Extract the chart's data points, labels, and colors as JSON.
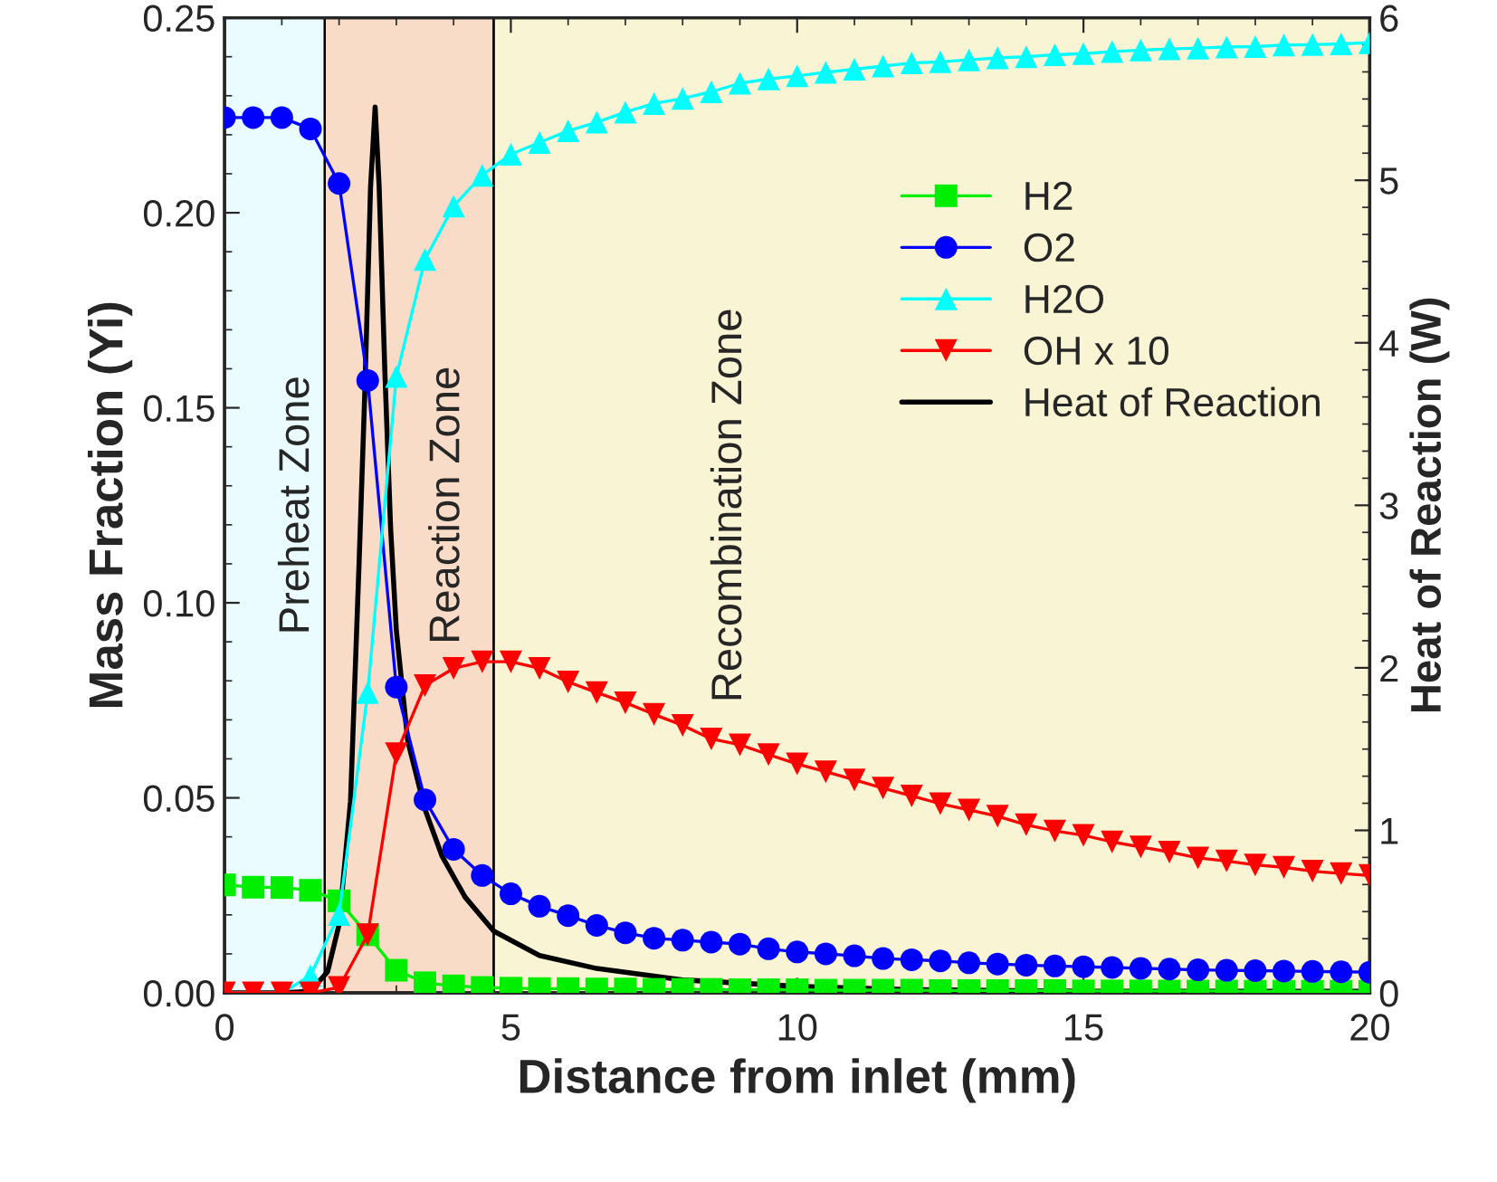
{
  "chart_data": {
    "type": "line",
    "xlabel": "Distance from inlet (mm)",
    "ylabel": "Mass Fraction (Yi)",
    "y2label": "Heat of Reaction (W)",
    "x": [
      0,
      0.5,
      1,
      1.5,
      2,
      2.5,
      3,
      3.5,
      4,
      4.5,
      5,
      5.5,
      6,
      6.5,
      7,
      7.5,
      8,
      8.5,
      9,
      9.5,
      10,
      10.5,
      11,
      11.5,
      12,
      12.5,
      13,
      13.5,
      14,
      14.5,
      15,
      15.5,
      16,
      16.5,
      17,
      17.5,
      18,
      18.5,
      19,
      19.5,
      20
    ],
    "series": [
      {
        "name": "H2",
        "color": "#00ee00",
        "marker": "square",
        "values": [
          0.0277,
          0.0271,
          0.027,
          0.0263,
          0.0236,
          0.0149,
          0.0058,
          0.0026,
          0.0018,
          0.0014,
          0.0012,
          0.0011,
          0.0011,
          0.001,
          0.001,
          0.0009,
          0.0009,
          0.0009,
          0.0008,
          0.0008,
          0.0008,
          0.0007,
          0.0007,
          0.0007,
          0.0007,
          0.0006,
          0.0006,
          0.0006,
          0.0006,
          0.0006,
          0.0005,
          0.0005,
          0.0005,
          0.0005,
          0.0005,
          0.0005,
          0.0004,
          0.0004,
          0.0004,
          0.0004,
          0.0004
        ]
      },
      {
        "name": "O2",
        "color": "#0000ff",
        "marker": "circle",
        "values": [
          0.2244,
          0.2244,
          0.2244,
          0.2215,
          0.2075,
          0.157,
          0.0784,
          0.0495,
          0.0368,
          0.0301,
          0.0254,
          0.0222,
          0.0198,
          0.0173,
          0.0154,
          0.014,
          0.0135,
          0.013,
          0.0125,
          0.0113,
          0.0105,
          0.01,
          0.0095,
          0.0088,
          0.0085,
          0.0082,
          0.0077,
          0.0074,
          0.0071,
          0.0069,
          0.0067,
          0.0065,
          0.0063,
          0.0061,
          0.0059,
          0.0058,
          0.0057,
          0.0056,
          0.0055,
          0.0054,
          0.0053
        ]
      },
      {
        "name": "H2O",
        "color": "#00ffff",
        "marker": "triangle",
        "values": [
          0,
          0,
          0,
          0.0044,
          0.0201,
          0.077,
          0.158,
          0.188,
          0.2017,
          0.2096,
          0.215,
          0.218,
          0.221,
          0.2232,
          0.2258,
          0.228,
          0.2293,
          0.231,
          0.2332,
          0.2343,
          0.2351,
          0.236,
          0.2368,
          0.2376,
          0.2384,
          0.2387,
          0.2392,
          0.2397,
          0.24,
          0.2405,
          0.2408,
          0.2413,
          0.2417,
          0.242,
          0.2422,
          0.2425,
          0.2426,
          0.243,
          0.2431,
          0.2433,
          0.2436
        ]
      },
      {
        "name": "OH x 10",
        "color": "#ff0000",
        "marker": "triangle_down",
        "values": [
          0,
          0,
          0,
          0,
          0.0014,
          0.0149,
          0.0613,
          0.0788,
          0.0832,
          0.0849,
          0.0849,
          0.0832,
          0.0797,
          0.077,
          0.0744,
          0.0714,
          0.0686,
          0.0651,
          0.0636,
          0.0611,
          0.0587,
          0.0567,
          0.0546,
          0.0525,
          0.0505,
          0.0485,
          0.0469,
          0.0453,
          0.0431,
          0.0415,
          0.0404,
          0.0387,
          0.0374,
          0.0361,
          0.0346,
          0.0338,
          0.0328,
          0.0322,
          0.0312,
          0.0306,
          0.0301
        ]
      },
      {
        "name": "Heat of Reaction",
        "color": "#000000",
        "marker": "none",
        "axis": "y2",
        "x": [
          0,
          1,
          1.5,
          1.8,
          2,
          2.2,
          2.35,
          2.45,
          2.55,
          2.63,
          2.7,
          2.8,
          2.9,
          3,
          3.2,
          3.5,
          3.8,
          4.2,
          4.7,
          5.5,
          6.5,
          8,
          10,
          12,
          15,
          20
        ],
        "values": [
          0,
          0,
          0.01,
          0.13,
          0.42,
          1.18,
          2.65,
          3.7,
          4.96,
          5.45,
          4.96,
          3.82,
          2.86,
          2.23,
          1.55,
          1.13,
          0.84,
          0.59,
          0.38,
          0.23,
          0.15,
          0.08,
          0.04,
          0.02,
          0.01,
          0.01
        ]
      }
    ],
    "bands": [
      {
        "axis": "x",
        "from": 0,
        "to": 1.75,
        "label": "Preheat Zone",
        "color": "#eafcff"
      },
      {
        "axis": "x",
        "from": 1.75,
        "to": 4.7,
        "label": "Reaction Zone",
        "color": "#f9dcc8"
      },
      {
        "axis": "x",
        "from": 4.7,
        "to": 20,
        "label": "Recombination Zone",
        "color": "#f9f5d4"
      }
    ],
    "xlim": [
      0,
      20
    ],
    "xticks": [
      0,
      5,
      10,
      15,
      20
    ],
    "ylim": [
      0,
      0.25
    ],
    "yticks": [
      {
        "value": 0,
        "label": "0.00"
      },
      {
        "value": 0.05,
        "label": "0.05"
      },
      {
        "value": 0.1,
        "label": "0.10"
      },
      {
        "value": 0.15,
        "label": "0.15"
      },
      {
        "value": 0.2,
        "label": "0.20"
      },
      {
        "value": 0.25,
        "label": "0.25"
      }
    ],
    "y2lim": [
      0,
      6
    ],
    "y2ticks": [
      0,
      1,
      2,
      3,
      4,
      5,
      6
    ],
    "legend": "top right",
    "grid": false,
    "line_style": "solid"
  }
}
